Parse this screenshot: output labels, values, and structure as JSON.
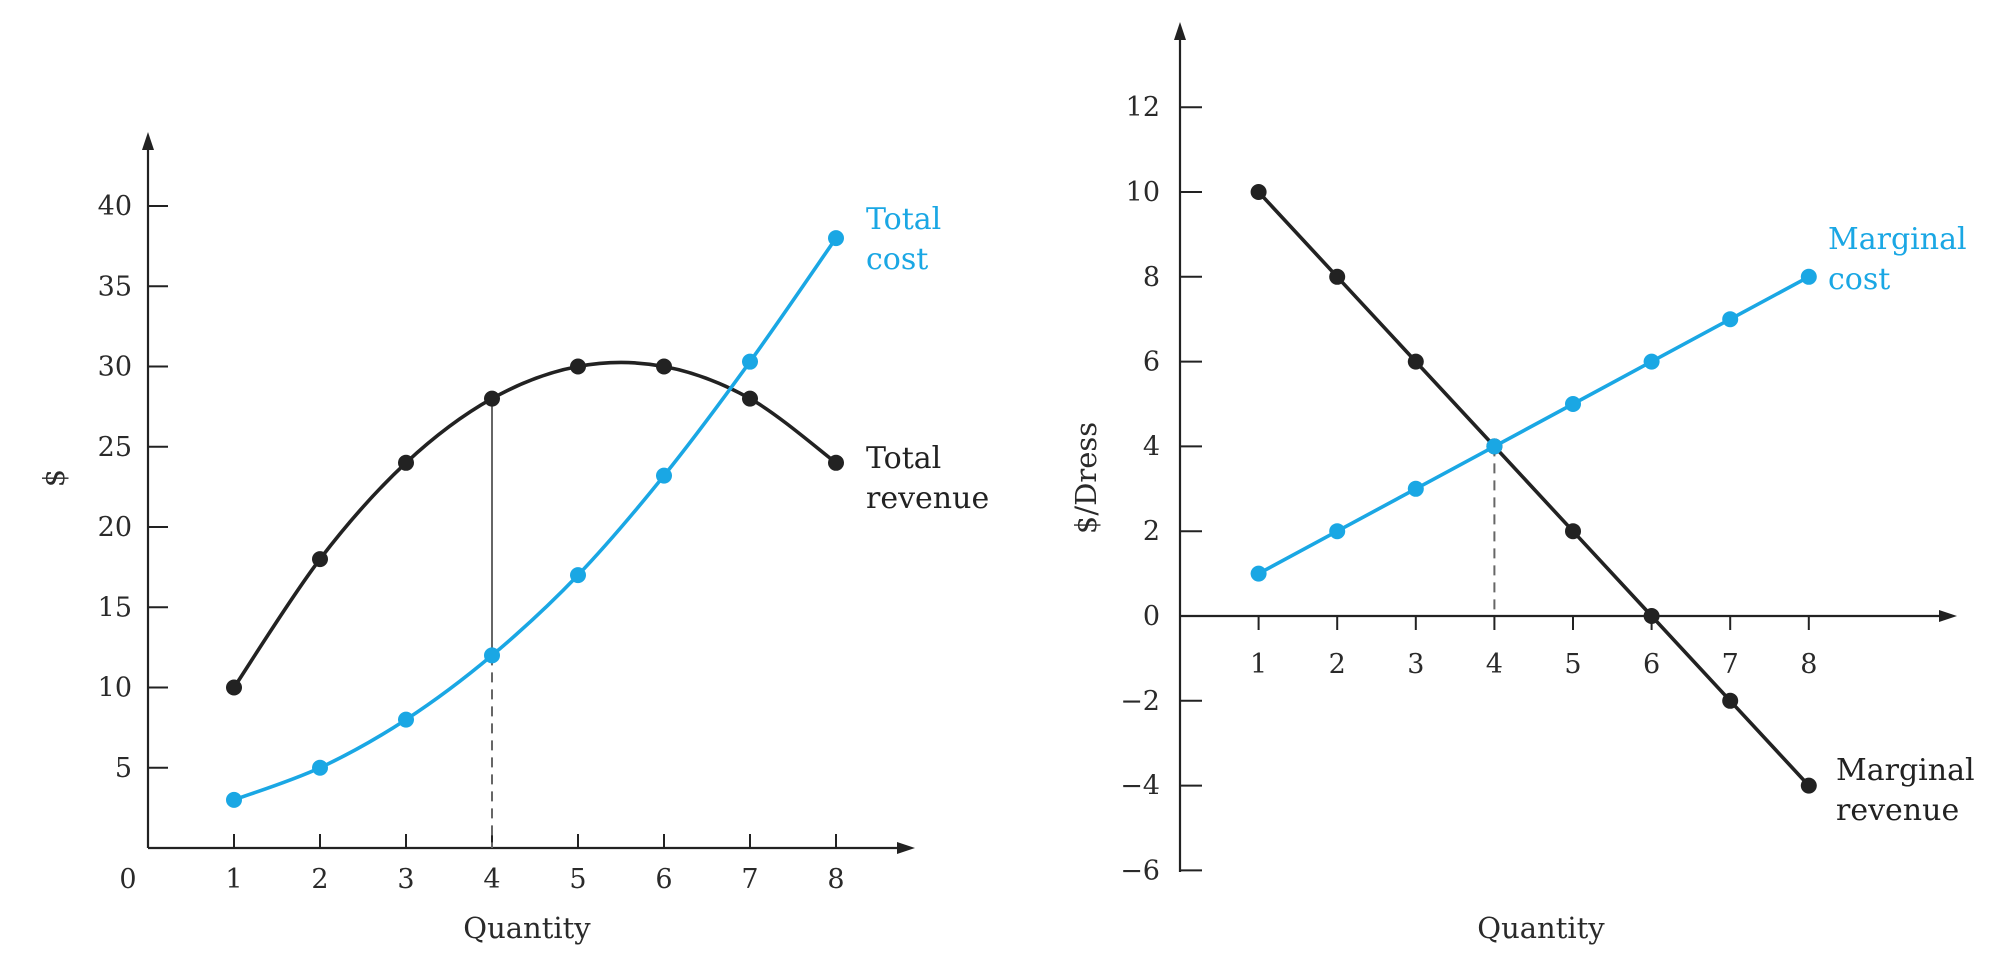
{
  "colors": {
    "revenue": "#222222",
    "cost": "#1aa7e4",
    "axis": "#222222",
    "guide": "#666666"
  },
  "chart_data": [
    {
      "type": "line",
      "xlabel": "Quantity",
      "ylabel": "$",
      "xlim": [
        0,
        8
      ],
      "ylim": [
        0,
        40
      ],
      "origin_label": "0",
      "x_ticks": [
        "1",
        "2",
        "3",
        "4",
        "5",
        "6",
        "7",
        "8"
      ],
      "y_ticks": [
        "5",
        "10",
        "15",
        "20",
        "25",
        "30",
        "35",
        "40"
      ],
      "x": [
        1,
        2,
        3,
        4,
        5,
        6,
        7,
        8
      ],
      "series": [
        {
          "label_lines": [
            "Total",
            "revenue"
          ],
          "color": "revenue",
          "values": [
            10,
            18,
            24,
            28,
            30,
            30,
            28,
            24
          ]
        },
        {
          "label_lines": [
            "Total",
            "cost"
          ],
          "color": "cost",
          "values": [
            3,
            5,
            8,
            12,
            17,
            23.2,
            30.3,
            38
          ]
        }
      ],
      "guide": {
        "x": 4,
        "solid_between": [
          12,
          28
        ],
        "dashed_from": 0,
        "dashed_to": 12
      },
      "grid": false
    },
    {
      "type": "line",
      "xlabel": "Quantity",
      "ylabel": "$/Dress",
      "xlim": [
        0,
        8
      ],
      "ylim": [
        -6,
        12
      ],
      "x_ticks": [
        "1",
        "2",
        "3",
        "4",
        "5",
        "6",
        "7",
        "8"
      ],
      "y_ticks": [
        {
          "v": 12,
          "t": "12"
        },
        {
          "v": 10,
          "t": "10"
        },
        {
          "v": 8,
          "t": "8"
        },
        {
          "v": 6,
          "t": "6"
        },
        {
          "v": 4,
          "t": "4"
        },
        {
          "v": 2,
          "t": "2"
        },
        {
          "v": 0,
          "t": "0"
        },
        {
          "v": -2,
          "t": "−2"
        },
        {
          "v": -4,
          "t": "−4"
        },
        {
          "v": -6,
          "t": "−6"
        }
      ],
      "x": [
        1,
        2,
        3,
        4,
        5,
        6,
        7,
        8
      ],
      "series": [
        {
          "label_lines": [
            "Marginal",
            "revenue"
          ],
          "color": "revenue",
          "values": [
            10,
            8,
            6,
            4,
            2,
            0,
            -2,
            -4
          ]
        },
        {
          "label_lines": [
            "Marginal",
            "cost"
          ],
          "color": "cost",
          "values": [
            1,
            2,
            3,
            4,
            5,
            6,
            7,
            8
          ]
        }
      ],
      "guide": {
        "x": 4,
        "dashed_from": 0,
        "dashed_to": 4
      },
      "grid": false
    }
  ]
}
